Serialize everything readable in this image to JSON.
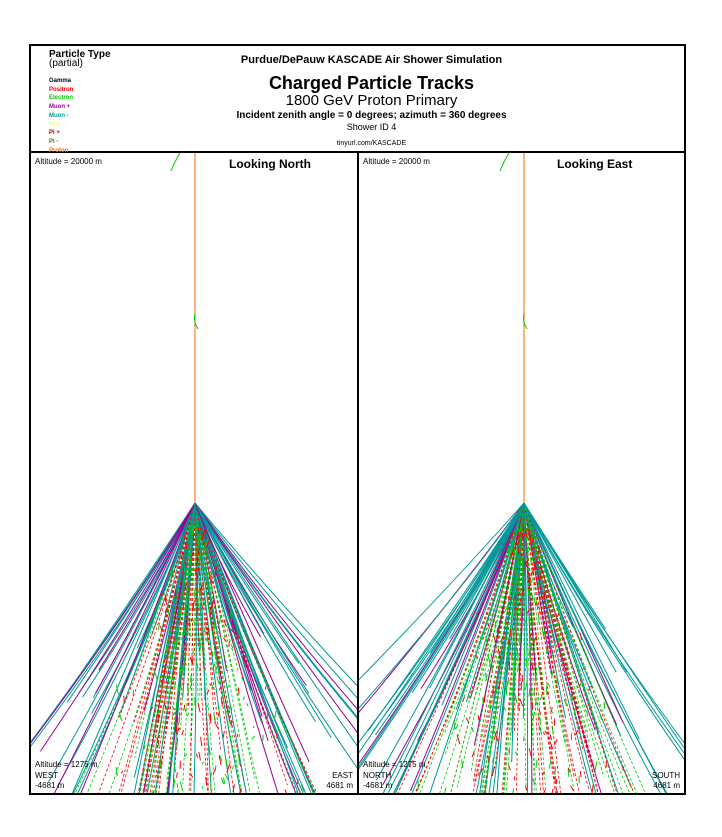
{
  "header": {
    "legend_title": "Particle Type",
    "legend_subtitle": "(partial)",
    "legend": [
      {
        "label": "Gamma",
        "color": "#000000"
      },
      {
        "label": "Positron",
        "color": "#ff0000"
      },
      {
        "label": "Electron",
        "color": "#00cc00"
      },
      {
        "label": "Muon +",
        "color": "#990099"
      },
      {
        "label": "Muon -",
        "color": "#009999"
      },
      {
        "label": "Pi 0",
        "color": "#ffff66"
      },
      {
        "label": "Pi +",
        "color": "#990000"
      },
      {
        "label": "Pi -",
        "color": "#666600"
      },
      {
        "label": "Proton",
        "color": "#ff6600"
      }
    ],
    "sim_title": "Purdue/DePauw KASCADE Air Shower Simulation",
    "main_title": "Charged Particle Tracks",
    "sub_title": "1800 GeV Proton Primary",
    "angle_line": "Incident zenith angle =  0 degrees;  azimuth =  360 degrees",
    "shower_id": "Shower ID 4",
    "url": "tinyurl.com/KASCADE"
  },
  "panels": [
    {
      "view": "Looking North",
      "altitude_top": "Altitude = 20000 m",
      "altitude_bottom": "Altitude = 1275 m",
      "left_dir": "WEST",
      "left_dist": "-4681 m",
      "right_dir": "EAST",
      "right_dist": "4681 m"
    },
    {
      "view": "Looking East",
      "altitude_top": "Altitude = 20000 m",
      "altitude_bottom": "Altitude = 1275 m",
      "left_dir": "NORTH",
      "left_dist": "-4681 m",
      "right_dir": "SOUTH",
      "right_dist": "4681 m"
    }
  ]
}
